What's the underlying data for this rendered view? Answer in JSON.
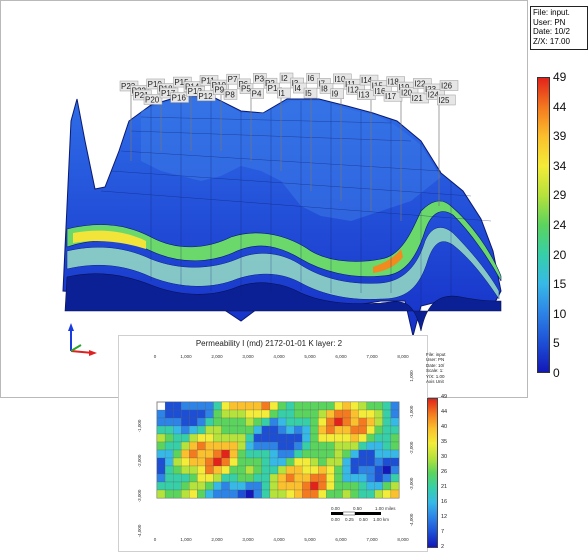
{
  "info_box": {
    "file": "File: input.",
    "user": "User: PN",
    "date": "Date: 10/2",
    "zx": "Z/X: 17.00"
  },
  "colorbar": {
    "labels": [
      "49",
      "44",
      "39",
      "34",
      "29",
      "24",
      "20",
      "15",
      "10",
      "5",
      "0"
    ],
    "colors": [
      "#e2231a",
      "#f47a1f",
      "#fbc02d",
      "#f3ec38",
      "#b5e23b",
      "#5bd45e",
      "#36cfa8",
      "#37b9e7",
      "#2d83e6",
      "#1d4fd6",
      "#1318b8"
    ]
  },
  "well_labels": [
    "P23",
    "P22",
    "P21",
    "P20",
    "P19",
    "P18",
    "P17",
    "P16",
    "P15",
    "P14",
    "P13",
    "P12",
    "P11",
    "P10",
    "P9",
    "P8",
    "P7",
    "P6",
    "P5",
    "P4",
    "P3",
    "P2",
    "P1",
    "I1",
    "I2",
    "I3",
    "I4",
    "I5",
    "I6",
    "I7",
    "I8",
    "I9",
    "I10",
    "I11",
    "I12",
    "I13",
    "I14",
    "I15",
    "I16",
    "I17",
    "I18",
    "I19",
    "I20",
    "I21",
    "I22",
    "I23",
    "I24",
    "I25",
    "I26"
  ],
  "inset": {
    "title": "Permeability I (md) 2172-01-01    K layer: 2",
    "x_ticks": [
      "0",
      "1,000",
      "2,000",
      "3,000",
      "4,000",
      "5,000",
      "6,000",
      "7,000",
      "8,000"
    ],
    "y_ticks": [
      "-1,000",
      "-2,000",
      "-3,000",
      "-4,000"
    ],
    "y_ticks_right": [
      "1,000",
      "-1,000",
      "-2,000",
      "-3,000",
      "-4,000"
    ],
    "info_lines": [
      "File: input",
      "User: PN",
      "Date: 10/",
      "Scale: 1:",
      "Y/X: 1.00",
      "Axis Unit"
    ],
    "scale_bar": {
      "top": [
        "0.00",
        "0.50",
        "1.00 miles"
      ],
      "bottom": [
        "0.00",
        "0.25",
        "0.50",
        "1.00 km"
      ]
    },
    "colorbar_labels": [
      "49",
      "44",
      "40",
      "35",
      "30",
      "26",
      "21",
      "16",
      "12",
      "7",
      "2"
    ],
    "colorbar_colors": [
      "#e2231a",
      "#f47a1f",
      "#fbc02d",
      "#f3ec38",
      "#b5e23b",
      "#5bd45e",
      "#36cfa8",
      "#37b9e7",
      "#2d83e6",
      "#1d4fd6",
      "#1318b8"
    ]
  }
}
